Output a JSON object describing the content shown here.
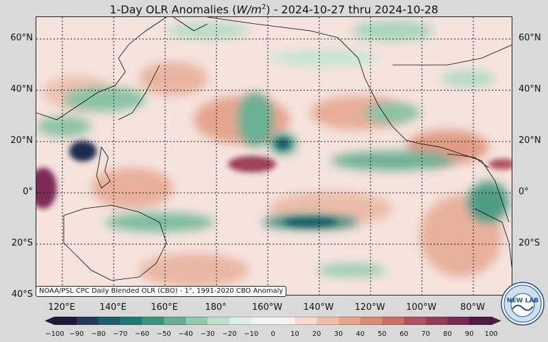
{
  "title": {
    "prefix": "1-Day OLR Anomalies (",
    "unit_base": "W/m",
    "unit_exp": "2",
    "suffix": ") - 2024-10-27 thru 2024-10-28"
  },
  "latitude_labels": [
    "60°N",
    "40°N",
    "20°N",
    "0°",
    "20°S",
    "40°S"
  ],
  "longitude_labels": [
    "120°E",
    "140°E",
    "160°E",
    "180°",
    "160°W",
    "140°W",
    "120°W",
    "100°W",
    "80°W"
  ],
  "attribution": "NOAA/PSL CPC Daily Blended OLR (CBO) - 1°, 1991-2020 CBO Anomaly",
  "colorbar": {
    "ticks": [
      "−100",
      "−90",
      "−80",
      "−70",
      "−60",
      "−50",
      "−40",
      "−30",
      "−20",
      "−10",
      "0",
      "10",
      "20",
      "30",
      "40",
      "50",
      "60",
      "70",
      "80",
      "90",
      "100"
    ],
    "colors": [
      "#1c1836",
      "#233a5e",
      "#1f5d6c",
      "#1f7a72",
      "#3a9480",
      "#68ae95",
      "#95c8ad",
      "#bddfcb",
      "#dcefe4",
      "#f7f1ee",
      "#f7f1ee",
      "#f6d9cf",
      "#f0bfac",
      "#e6a48c",
      "#d98b74",
      "#c96f64",
      "#b0525f",
      "#923c5d",
      "#742a55",
      "#4f1d3f"
    ]
  },
  "logo": {
    "text": "NEW LAB",
    "icon": "noaa-emblem-icon"
  }
}
